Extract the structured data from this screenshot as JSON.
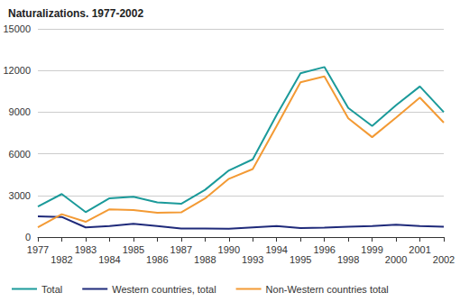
{
  "chart_data": {
    "type": "line",
    "title": "Naturalizations. 1977-2002",
    "categories": [
      "1977",
      "1982",
      "1983",
      "1984",
      "1985",
      "1986",
      "1987",
      "1988",
      "1990",
      "1993",
      "1994",
      "1995",
      "1996",
      "1998",
      "1999",
      "2000",
      "2001",
      "2002"
    ],
    "series": [
      {
        "name": "Total",
        "color": "#1b9a9a",
        "values": [
          2200,
          3100,
          1800,
          2800,
          2900,
          2500,
          2400,
          3400,
          4800,
          5600,
          8800,
          11800,
          12250,
          9300,
          8000,
          9500,
          10850,
          9000
        ]
      },
      {
        "name": "Western countries, total",
        "color": "#1f2a7a",
        "values": [
          1500,
          1450,
          700,
          800,
          950,
          800,
          620,
          620,
          600,
          700,
          800,
          650,
          680,
          750,
          800,
          900,
          800,
          750
        ]
      },
      {
        "name": "Non-Western countries total",
        "color": "#f39a34",
        "values": [
          700,
          1650,
          1100,
          2000,
          1950,
          1750,
          1780,
          2780,
          4200,
          4900,
          8000,
          11150,
          11570,
          8550,
          7200,
          8600,
          10050,
          8250
        ]
      }
    ],
    "ylim": [
      0,
      15000
    ],
    "yticks": [
      0,
      3000,
      6000,
      9000,
      12000,
      15000
    ],
    "grid": true,
    "legend": "bottom"
  }
}
